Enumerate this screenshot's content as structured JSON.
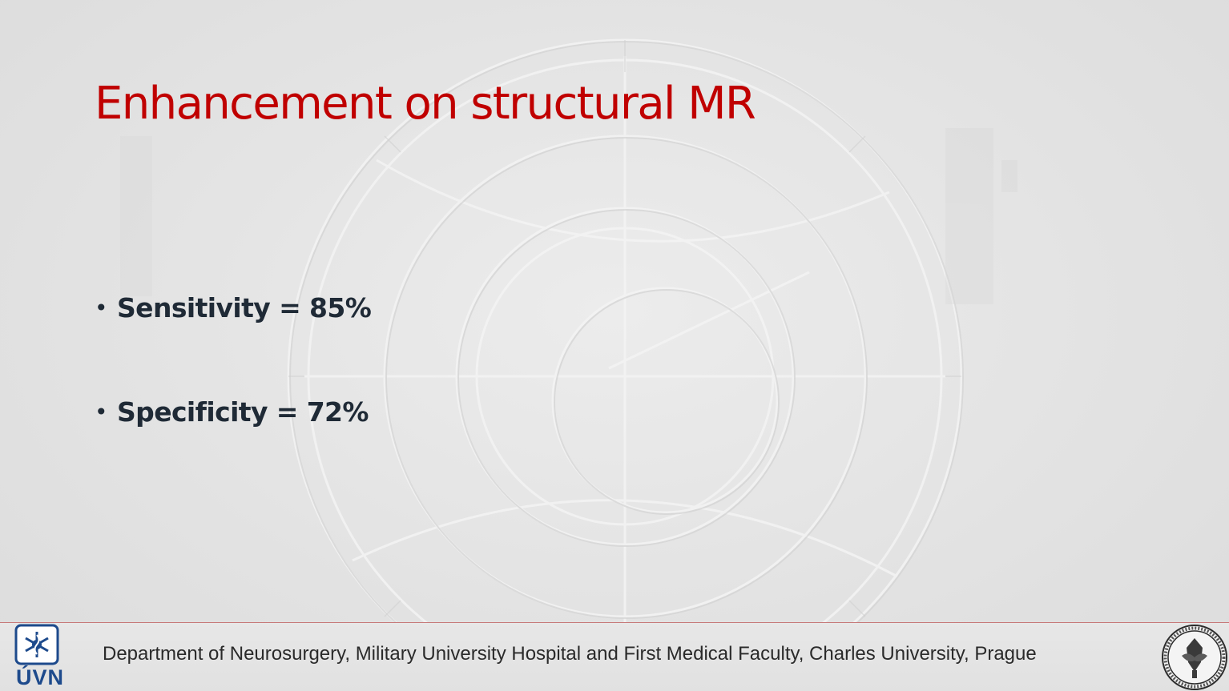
{
  "slide": {
    "title": "Enhancement on structural MR",
    "bullets": [
      {
        "marker": "•",
        "text": "Sensitivity = 85%"
      },
      {
        "marker": "•",
        "text": "Specificity = 72%"
      }
    ]
  },
  "footer": {
    "text": "Department of Neurosurgery, Military University Hospital and First Medical Faculty, Charles University, Prague",
    "left_logo": {
      "icon": "uvn-emblem-icon",
      "text": "ÚVN"
    },
    "right_logo": {
      "icon": "charles-university-seal-icon"
    }
  },
  "colors": {
    "title": "#c00000",
    "body_text": "#1f2a36",
    "footer_text": "#2a2a2a",
    "footer_rule": "#c77a7a",
    "uvn_blue": "#1d4a8c",
    "background": "#e4e4e4"
  }
}
